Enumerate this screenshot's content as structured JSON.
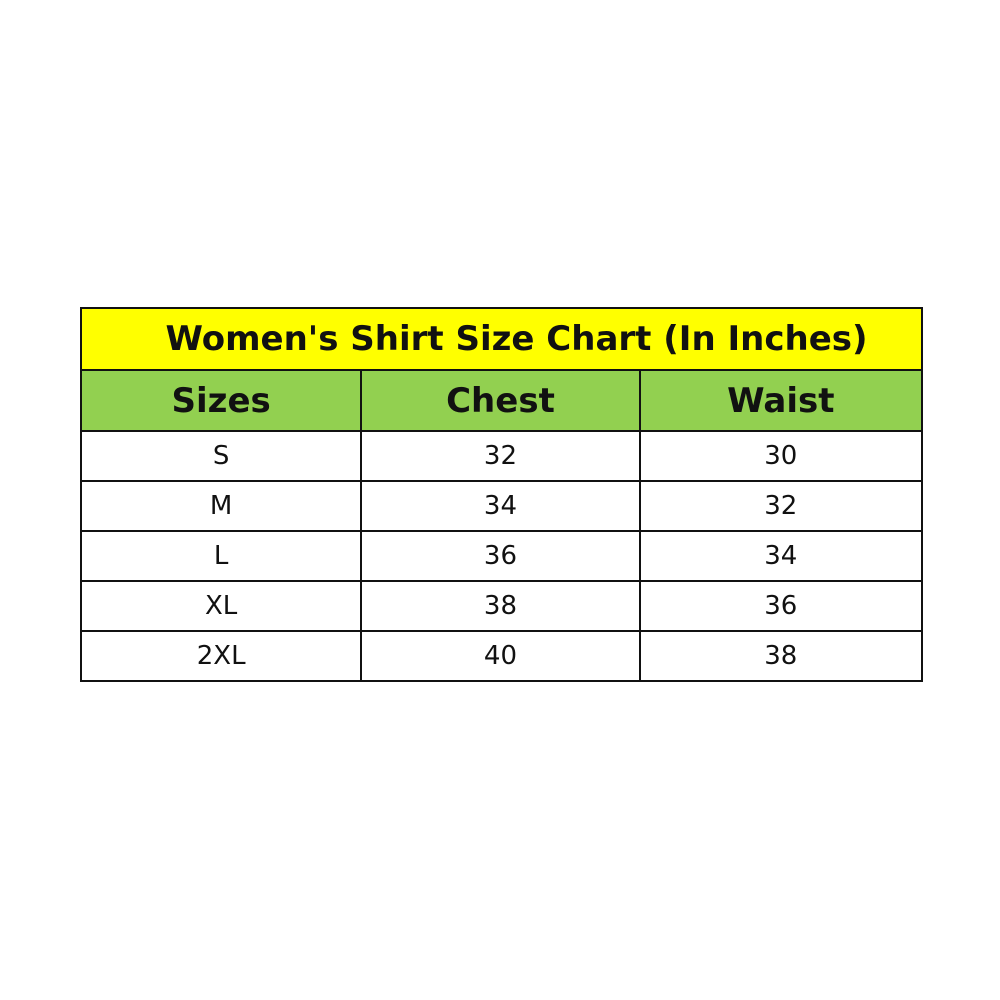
{
  "title": "Women's Shirt Size Chart (In Inches)",
  "columns": [
    "Sizes",
    "Chest",
    "Waist"
  ],
  "rows": [
    [
      "S",
      "32",
      "30"
    ],
    [
      "M",
      "34",
      "32"
    ],
    [
      "L",
      "36",
      "34"
    ],
    [
      "XL",
      "38",
      "36"
    ],
    [
      "2XL",
      "40",
      "38"
    ]
  ],
  "colors": {
    "title_bg": "#ffff00",
    "header_bg": "#92d050",
    "border": "#111111"
  }
}
